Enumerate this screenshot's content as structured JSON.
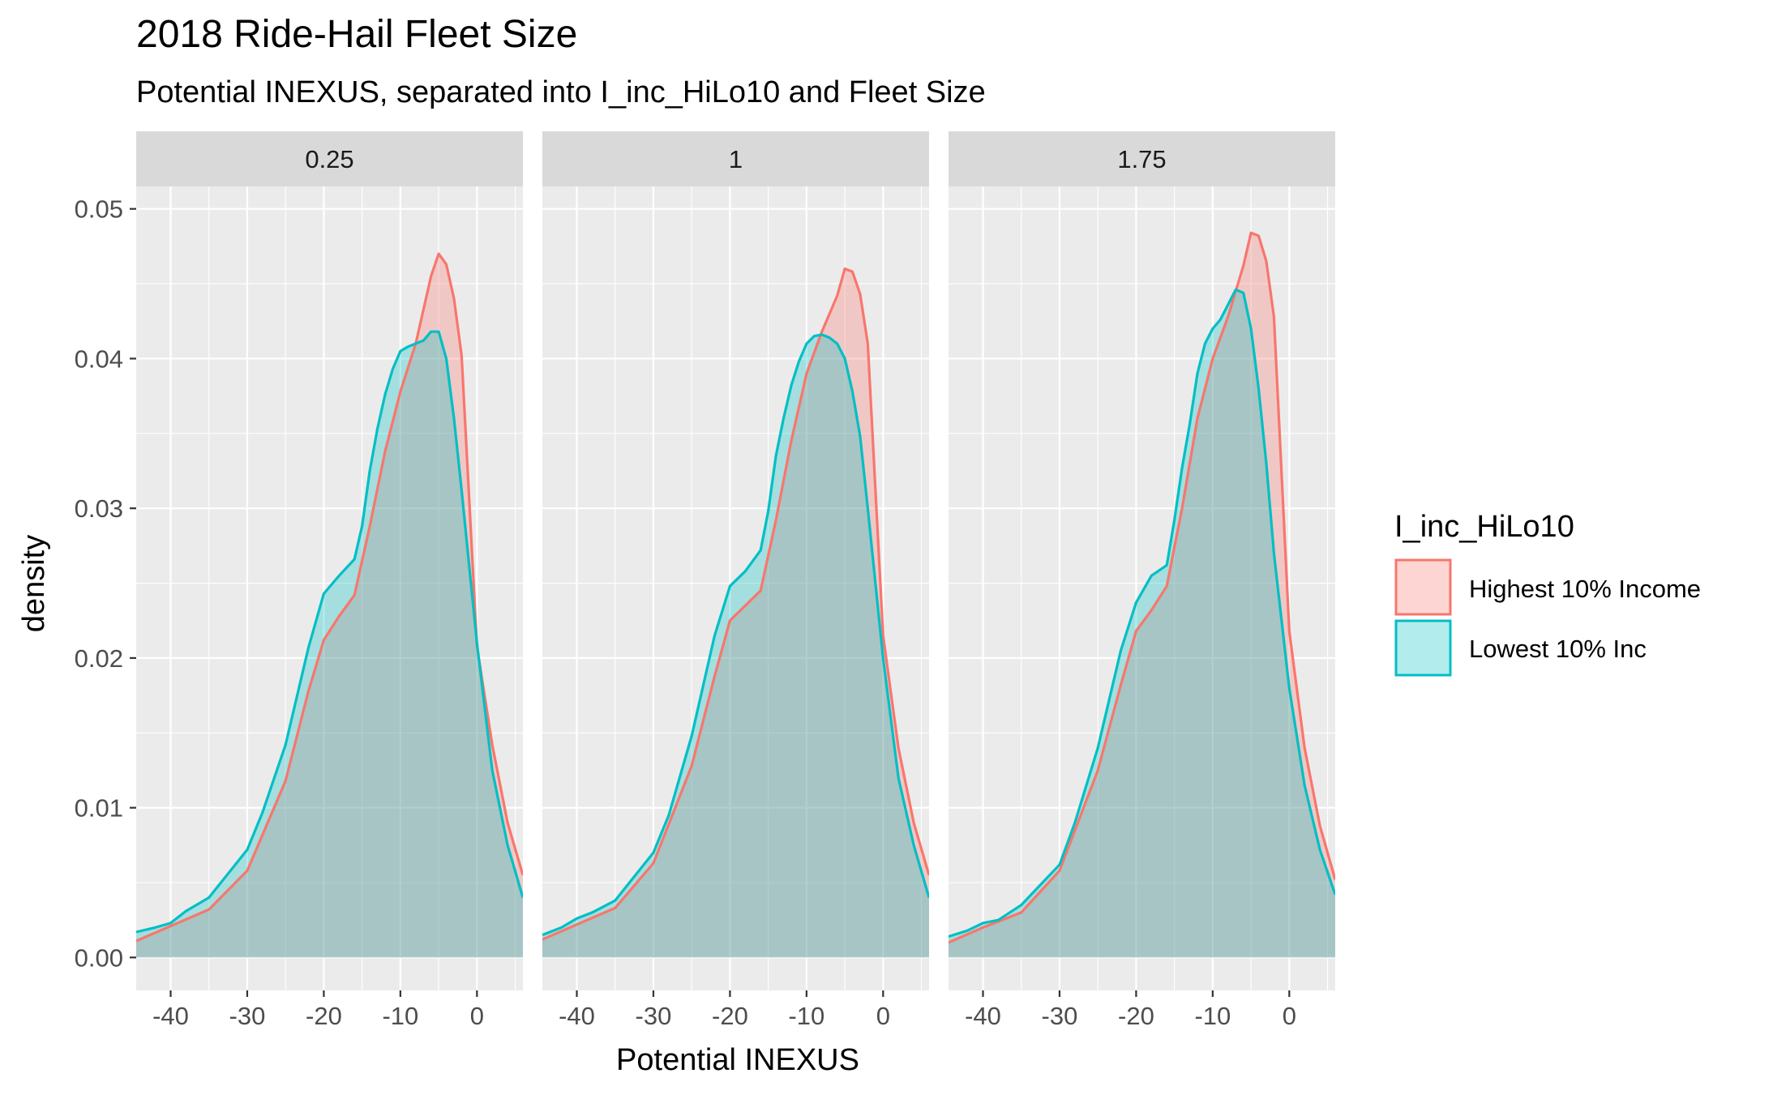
{
  "chart_data": {
    "type": "area",
    "title": "2018 Ride-Hail Fleet Size",
    "subtitle": "Potential INEXUS, separated into I_inc_HiLo10 and Fleet Size",
    "xlabel": "Potential INEXUS",
    "ylabel": "density",
    "xlim": [
      -44.5,
      6
    ],
    "ylim": [
      -0.0022,
      0.0515
    ],
    "x_ticks": [
      -40,
      -30,
      -20,
      -10,
      0
    ],
    "x_tick_labels": [
      "-40",
      "-30",
      "-20",
      "-10",
      "0"
    ],
    "y_ticks": [
      0,
      0.01,
      0.02,
      0.03,
      0.04,
      0.05
    ],
    "y_tick_labels": [
      "0.00",
      "0.01",
      "0.02",
      "0.03",
      "0.04",
      "0.05"
    ],
    "grid": true,
    "legend": {
      "title": "I_inc_HiLo10",
      "position": "right",
      "entries": [
        {
          "label": "Highest 10% Income",
          "line": "#F8766D",
          "fill": "#F8766D"
        },
        {
          "label": "Lowest 10% Inc",
          "line": "#00BFC4",
          "fill": "#00BFC4"
        }
      ]
    },
    "fill_opacity": 0.3,
    "panels": [
      {
        "label": "0.25",
        "series": [
          {
            "name": "Highest 10% Income",
            "x": [
              -44.5,
              -40,
              -35,
              -30,
              -25,
              -22,
              -20,
              -18,
              -16,
              -14,
              -12,
              -10,
              -8,
              -6,
              -5,
              -4,
              -3,
              -2,
              0,
              2,
              4,
              6
            ],
            "y": [
              0.0011,
              0.0021,
              0.0032,
              0.0058,
              0.0118,
              0.0178,
              0.0212,
              0.0228,
              0.0242,
              0.0288,
              0.0338,
              0.0378,
              0.041,
              0.0455,
              0.047,
              0.0463,
              0.044,
              0.0402,
              0.0208,
              0.0142,
              0.009,
              0.0055
            ]
          },
          {
            "name": "Lowest 10% Inc",
            "x": [
              -44.5,
              -42,
              -40,
              -38,
              -35,
              -30,
              -28,
              -25,
              -22,
              -20,
              -18,
              -16,
              -15,
              -14,
              -13,
              -12,
              -11,
              -10,
              -9,
              -8,
              -7,
              -6,
              -5,
              -4,
              -3,
              -2,
              0,
              2,
              4,
              6
            ],
            "y": [
              0.0017,
              0.002,
              0.0023,
              0.0031,
              0.004,
              0.0072,
              0.0097,
              0.0142,
              0.0207,
              0.0243,
              0.0255,
              0.0266,
              0.0288,
              0.0325,
              0.0353,
              0.0376,
              0.0393,
              0.0405,
              0.0408,
              0.041,
              0.0412,
              0.0418,
              0.0418,
              0.04,
              0.036,
              0.0312,
              0.021,
              0.0125,
              0.0075,
              0.004
            ]
          }
        ]
      },
      {
        "label": "1",
        "series": [
          {
            "name": "Highest 10% Income",
            "x": [
              -44.5,
              -40,
              -35,
              -30,
              -25,
              -22,
              -20,
              -18,
              -16,
              -14,
              -12,
              -10,
              -8,
              -6,
              -5,
              -4,
              -3,
              -2,
              0,
              2,
              4,
              6
            ],
            "y": [
              0.0012,
              0.0022,
              0.0033,
              0.0063,
              0.0128,
              0.0188,
              0.0225,
              0.0235,
              0.0245,
              0.0292,
              0.0345,
              0.039,
              0.0418,
              0.0442,
              0.046,
              0.0458,
              0.0443,
              0.041,
              0.0215,
              0.014,
              0.009,
              0.0055
            ]
          },
          {
            "name": "Lowest 10% Inc",
            "x": [
              -44.5,
              -42,
              -40,
              -38,
              -35,
              -30,
              -28,
              -25,
              -22,
              -20,
              -18,
              -16,
              -15,
              -14,
              -13,
              -12,
              -11,
              -10,
              -9,
              -8,
              -7,
              -6,
              -5,
              -4,
              -3,
              -2,
              0,
              2,
              4,
              6
            ],
            "y": [
              0.0015,
              0.002,
              0.0026,
              0.003,
              0.0038,
              0.007,
              0.0095,
              0.0148,
              0.0215,
              0.0248,
              0.0258,
              0.0272,
              0.0298,
              0.0335,
              0.036,
              0.0382,
              0.0398,
              0.041,
              0.0415,
              0.0416,
              0.0414,
              0.041,
              0.04,
              0.0378,
              0.0348,
              0.03,
              0.02,
              0.012,
              0.0075,
              0.004
            ]
          }
        ]
      },
      {
        "label": "1.75",
        "series": [
          {
            "name": "Highest 10% Income",
            "x": [
              -44.5,
              -40,
              -35,
              -30,
              -25,
              -22,
              -20,
              -18,
              -16,
              -14,
              -12,
              -10,
              -8,
              -6,
              -5,
              -4,
              -3,
              -2,
              0,
              2,
              4,
              6
            ],
            "y": [
              0.001,
              0.002,
              0.003,
              0.0058,
              0.0125,
              0.0182,
              0.0218,
              0.0232,
              0.0248,
              0.03,
              0.036,
              0.04,
              0.0428,
              0.0462,
              0.0484,
              0.0482,
              0.0465,
              0.0428,
              0.0218,
              0.014,
              0.0088,
              0.0052
            ]
          },
          {
            "name": "Lowest 10% Inc",
            "x": [
              -44.5,
              -42,
              -40,
              -38,
              -35,
              -30,
              -28,
              -25,
              -22,
              -20,
              -18,
              -16,
              -15,
              -14,
              -13,
              -12,
              -11,
              -10,
              -9,
              -8,
              -7,
              -6,
              -5,
              -4,
              -3,
              -2,
              0,
              2,
              4,
              6
            ],
            "y": [
              0.0014,
              0.0018,
              0.0023,
              0.0025,
              0.0035,
              0.0062,
              0.009,
              0.014,
              0.0205,
              0.0237,
              0.0255,
              0.0262,
              0.0292,
              0.0327,
              0.0356,
              0.039,
              0.041,
              0.042,
              0.0426,
              0.0436,
              0.0446,
              0.0444,
              0.042,
              0.038,
              0.033,
              0.027,
              0.018,
              0.0115,
              0.0072,
              0.0042
            ]
          }
        ]
      }
    ]
  }
}
